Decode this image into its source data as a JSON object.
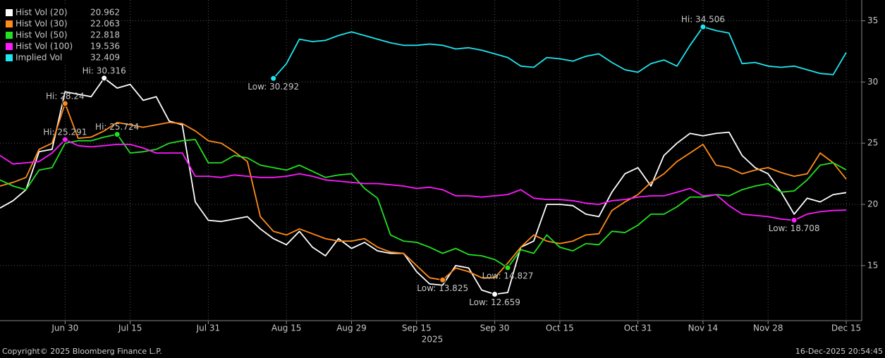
{
  "chart_data": {
    "type": "line",
    "categories": [
      null,
      null,
      null,
      null,
      null,
      "Jun 30",
      null,
      null,
      null,
      null,
      "Jul 15",
      null,
      null,
      null,
      null,
      null,
      "Jul 31",
      null,
      null,
      null,
      null,
      null,
      "Aug 15",
      null,
      null,
      null,
      null,
      "Aug 29",
      null,
      null,
      null,
      null,
      "Sep 15",
      null,
      null,
      null,
      null,
      null,
      "Sep 30",
      null,
      null,
      null,
      null,
      "Oct 15",
      null,
      null,
      null,
      null,
      null,
      "Oct 31",
      null,
      null,
      null,
      null,
      "Nov 14",
      null,
      null,
      null,
      null,
      "Nov 28",
      null,
      null,
      null,
      null,
      null,
      "Dec 15"
    ],
    "xlabel": "2025",
    "series": [
      {
        "name": "Hist Vol (20)",
        "color": "#ffffff",
        "values": [
          19.7,
          20.3,
          21.2,
          24.3,
          24.5,
          29.2,
          29.0,
          28.8,
          30.316,
          29.5,
          29.8,
          28.5,
          28.8,
          26.8,
          26.5,
          20.2,
          18.7,
          18.6,
          18.8,
          19.0,
          18.0,
          17.2,
          16.7,
          17.8,
          16.5,
          15.8,
          17.2,
          16.4,
          16.9,
          16.2,
          16.0,
          16.0,
          14.5,
          13.5,
          13.4,
          15.0,
          14.8,
          13.0,
          12.659,
          12.8,
          16.5,
          17.0,
          20.0,
          20.0,
          19.9,
          19.2,
          19.0,
          21.0,
          22.5,
          23.0,
          21.5,
          24.0,
          25.0,
          25.8,
          25.6,
          25.8,
          25.9,
          24.0,
          23.0,
          22.5,
          21.0,
          19.2,
          20.5,
          20.2,
          20.8,
          20.962
        ]
      },
      {
        "name": "Hist Vol (30)",
        "color": "#ff8c1a",
        "values": [
          21.5,
          21.8,
          22.2,
          24.5,
          25.0,
          28.24,
          25.4,
          25.5,
          26.0,
          26.7,
          26.5,
          26.3,
          26.5,
          26.7,
          26.6,
          26.0,
          25.2,
          25.0,
          24.3,
          23.5,
          19.0,
          17.8,
          17.5,
          18.0,
          17.6,
          17.2,
          17.0,
          17.0,
          17.2,
          16.5,
          16.1,
          16.0,
          15.0,
          14.0,
          13.825,
          14.8,
          14.5,
          14.0,
          14.0,
          15.2,
          16.5,
          17.5,
          17.0,
          16.8,
          17.0,
          17.5,
          17.6,
          19.5,
          20.2,
          20.8,
          21.8,
          22.5,
          23.5,
          24.2,
          24.9,
          23.2,
          23.0,
          22.5,
          22.8,
          23.0,
          22.6,
          22.3,
          22.5,
          24.2,
          23.4,
          22.063
        ]
      },
      {
        "name": "Hist Vol (50)",
        "color": "#22e022",
        "values": [
          22.0,
          21.5,
          21.2,
          22.8,
          23.0,
          25.0,
          25.2,
          25.2,
          25.5,
          25.724,
          24.2,
          24.3,
          24.5,
          25.0,
          25.2,
          25.3,
          23.4,
          23.4,
          24.0,
          23.8,
          23.2,
          23.0,
          22.8,
          23.2,
          22.7,
          22.2,
          22.4,
          22.5,
          21.3,
          20.5,
          17.5,
          17.0,
          16.9,
          16.5,
          16.0,
          16.4,
          15.9,
          15.8,
          15.5,
          14.827,
          16.3,
          16.0,
          17.5,
          16.5,
          16.2,
          16.8,
          16.7,
          17.8,
          17.7,
          18.3,
          19.2,
          19.2,
          19.8,
          20.6,
          20.6,
          20.8,
          20.7,
          21.2,
          21.5,
          21.7,
          21.0,
          21.1,
          22.0,
          23.2,
          23.4,
          22.818
        ]
      },
      {
        "name": "Hist Vol (100)",
        "color": "#ff1aff",
        "values": [
          24.0,
          23.3,
          23.4,
          23.5,
          24.2,
          25.291,
          24.8,
          24.7,
          24.8,
          24.9,
          24.9,
          24.6,
          24.2,
          24.2,
          24.2,
          22.3,
          22.3,
          22.2,
          22.4,
          22.3,
          22.2,
          22.2,
          22.3,
          22.5,
          22.3,
          22.0,
          21.9,
          21.8,
          21.7,
          21.7,
          21.6,
          21.5,
          21.3,
          21.4,
          21.2,
          20.7,
          20.7,
          20.6,
          20.7,
          20.8,
          21.2,
          20.5,
          20.4,
          20.4,
          20.3,
          20.1,
          20.0,
          20.3,
          20.4,
          20.6,
          20.7,
          20.7,
          21.0,
          21.3,
          20.7,
          20.8,
          19.9,
          19.2,
          19.1,
          19.0,
          18.8,
          18.708,
          19.2,
          19.4,
          19.5,
          19.536
        ]
      },
      {
        "name": "Implied Vol",
        "color": "#1ee6f0",
        "values": [
          null,
          null,
          null,
          null,
          null,
          null,
          null,
          null,
          null,
          null,
          null,
          null,
          null,
          null,
          null,
          null,
          null,
          null,
          null,
          null,
          null,
          30.292,
          31.5,
          33.5,
          33.3,
          33.4,
          33.8,
          34.1,
          33.8,
          33.5,
          33.2,
          33.0,
          33.0,
          33.1,
          33.0,
          32.7,
          32.8,
          32.6,
          32.3,
          32.0,
          31.3,
          31.2,
          32.0,
          31.9,
          31.7,
          32.1,
          32.3,
          31.6,
          31.0,
          30.8,
          31.5,
          31.8,
          31.3,
          33.0,
          34.506,
          34.2,
          34.0,
          31.5,
          31.6,
          31.3,
          31.2,
          31.3,
          31.0,
          30.7,
          30.6,
          32.409
        ]
      }
    ],
    "annotations": [
      {
        "series": "Hist Vol (20)",
        "value": 30.316,
        "text": "Hi: 30.316"
      },
      {
        "series": "Hist Vol (20)",
        "value": 12.659,
        "text": "Low: 12.659"
      },
      {
        "series": "Hist Vol (30)",
        "value": 28.24,
        "text": "Hi: 28.24"
      },
      {
        "series": "Hist Vol (30)",
        "value": 13.825,
        "text": "Low: 13.825"
      },
      {
        "series": "Hist Vol (50)",
        "value": 25.724,
        "text": "Hi: 25.724"
      },
      {
        "series": "Hist Vol (50)",
        "value": 14.827,
        "text": "Low: 14.827"
      },
      {
        "series": "Hist Vol (100)",
        "value": 25.291,
        "text": "Hi: 25.291"
      },
      {
        "series": "Hist Vol (100)",
        "value": 18.708,
        "text": "Low: 18.708"
      },
      {
        "series": "Implied Vol",
        "value": 34.506,
        "text": "Hi: 34.506"
      },
      {
        "series": "Implied Vol",
        "value": 30.292,
        "text": "Low: 30.292"
      }
    ],
    "ylim": [
      10.5,
      36.7
    ],
    "yticks": [
      15,
      20,
      25,
      30,
      35
    ],
    "grid": true,
    "legend": "top-left",
    "footer_left": "Copyright© 2025 Bloomberg Finance L.P.",
    "footer_right": "16-Dec-2025 20:54:45"
  }
}
